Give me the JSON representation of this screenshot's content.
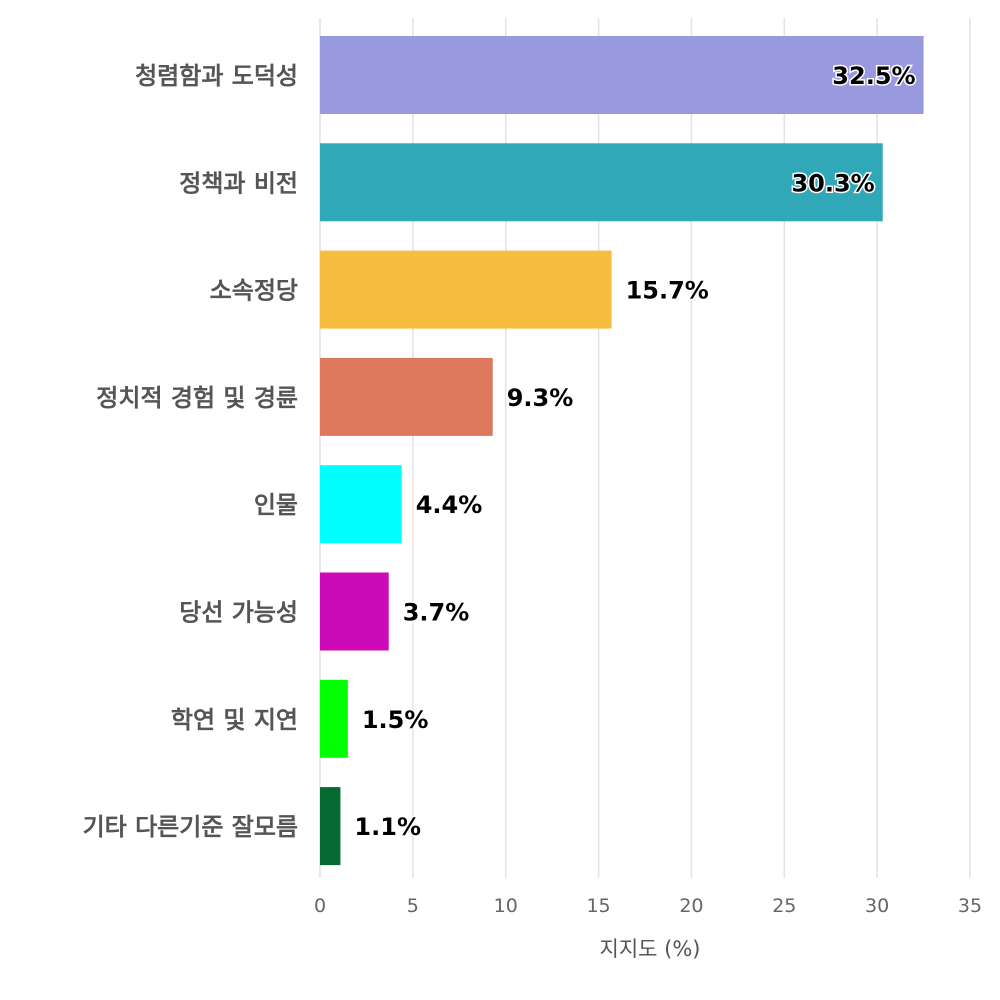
{
  "chart_data": {
    "type": "bar",
    "orientation": "horizontal",
    "categories": [
      "청렴함과 도덕성",
      "정책과 비전",
      "소속정당",
      "정치적 경험 및 경륜",
      "인물",
      "당선 가능성",
      "학연 및 지연",
      "기타 다른기준 잘모름"
    ],
    "values": [
      32.5,
      30.3,
      15.7,
      9.3,
      4.4,
      3.7,
      1.5,
      1.1
    ],
    "value_labels": [
      "32.5%",
      "30.3%",
      "15.7%",
      "9.3%",
      "4.4%",
      "3.7%",
      "1.5%",
      "1.1%"
    ],
    "colors": [
      "#9999e0",
      "#30a8b8",
      "#f5be40",
      "#dd785c",
      "#00ffff",
      "#cc0ab8",
      "#00ff00",
      "#056b32"
    ],
    "xlabel": "지지도 (%)",
    "xlim": [
      0,
      35
    ],
    "xticks": [
      "0",
      "5",
      "10",
      "15",
      "20",
      "25",
      "30",
      "35"
    ],
    "grid": true
  }
}
